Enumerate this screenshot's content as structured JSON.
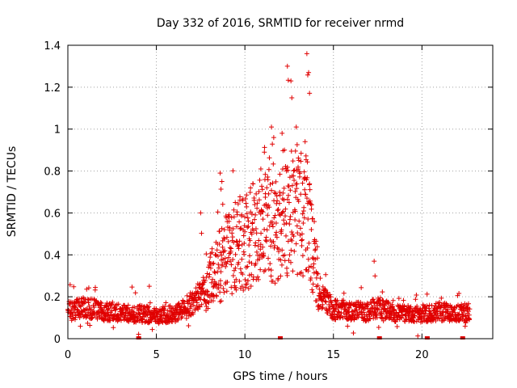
{
  "chart_data": {
    "type": "scatter",
    "title": "Day 332 of 2016, SRMTID for receiver nrmd",
    "xlabel": "GPS time / hours",
    "ylabel": "SRMTID / TECUs",
    "xlim": [
      0,
      24
    ],
    "ylim": [
      0,
      1.4
    ],
    "xticks": [
      "0",
      "5",
      "10",
      "15",
      "20"
    ],
    "yticks": [
      "0",
      "0.2",
      "0.4",
      "0.6",
      "0.8",
      "1",
      "1.2",
      "1.4"
    ],
    "grid": true,
    "marker": "+",
    "color": "#e00000",
    "profile": [
      [
        0.0,
        0.13
      ],
      [
        1.0,
        0.15
      ],
      [
        2.0,
        0.13
      ],
      [
        3.0,
        0.12
      ],
      [
        4.0,
        0.12
      ],
      [
        5.0,
        0.11
      ],
      [
        6.0,
        0.12
      ],
      [
        6.5,
        0.14
      ],
      [
        7.0,
        0.17
      ],
      [
        7.5,
        0.21
      ],
      [
        8.0,
        0.27
      ],
      [
        8.5,
        0.34
      ],
      [
        9.0,
        0.4
      ],
      [
        9.5,
        0.44
      ],
      [
        10.0,
        0.45
      ],
      [
        10.5,
        0.5
      ],
      [
        11.0,
        0.52
      ],
      [
        11.5,
        0.52
      ],
      [
        12.0,
        0.54
      ],
      [
        12.5,
        0.6
      ],
      [
        13.0,
        0.6
      ],
      [
        13.5,
        0.58
      ],
      [
        14.0,
        0.35
      ],
      [
        14.3,
        0.2
      ],
      [
        15.0,
        0.14
      ],
      [
        16.0,
        0.13
      ],
      [
        17.0,
        0.13
      ],
      [
        17.5,
        0.15
      ],
      [
        18.5,
        0.12
      ],
      [
        19.5,
        0.12
      ],
      [
        20.5,
        0.12
      ],
      [
        21.0,
        0.13
      ],
      [
        22.0,
        0.12
      ],
      [
        22.7,
        0.13
      ]
    ],
    "peaks": [
      {
        "x": 12.4,
        "y": 1.3
      },
      {
        "x": 12.6,
        "y": 1.23
      },
      {
        "x": 13.5,
        "y": 1.36
      },
      {
        "x": 13.6,
        "y": 1.27
      },
      {
        "x": 11.5,
        "y": 1.01
      },
      {
        "x": 12.9,
        "y": 1.01
      },
      {
        "x": 13.4,
        "y": 0.94
      },
      {
        "x": 12.1,
        "y": 0.98
      },
      {
        "x": 11.1,
        "y": 0.89
      },
      {
        "x": 10.9,
        "y": 0.81
      },
      {
        "x": 8.6,
        "y": 0.79
      },
      {
        "x": 8.7,
        "y": 0.75
      },
      {
        "x": 7.5,
        "y": 0.6
      },
      {
        "x": 17.3,
        "y": 0.37
      },
      {
        "x": 4.6,
        "y": 0.25
      }
    ],
    "gap_markers": [
      4.0,
      12.0,
      17.6,
      20.3,
      22.3
    ],
    "xmax_data": 22.7,
    "sample_step_hours": 0.0125
  }
}
